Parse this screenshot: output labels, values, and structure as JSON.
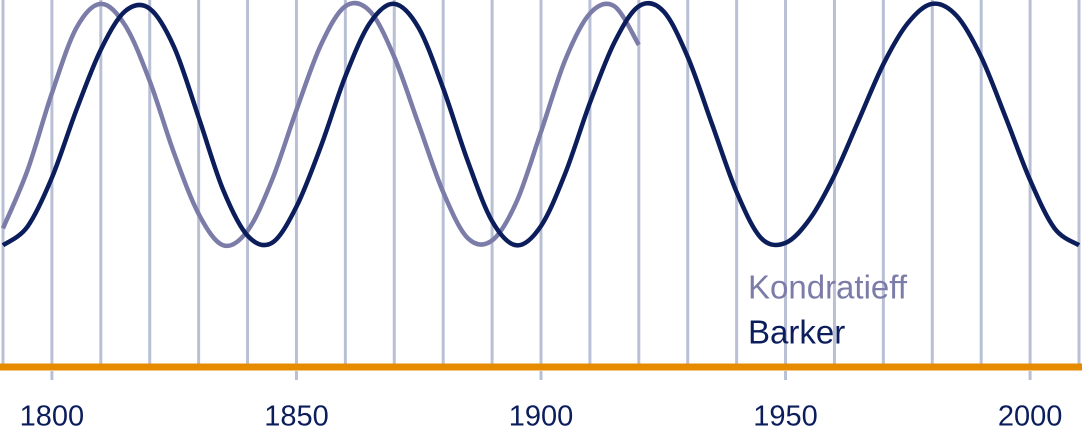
{
  "chart_data": {
    "type": "line",
    "x": [
      1790,
      1795,
      1800,
      1805,
      1810,
      1815,
      1820,
      1825,
      1830,
      1835,
      1840,
      1845,
      1850,
      1855,
      1860,
      1865,
      1870,
      1875,
      1880,
      1885,
      1890,
      1895,
      1900,
      1905,
      1910,
      1915,
      1920,
      1925,
      1930,
      1935,
      1940,
      1945,
      1950,
      1955,
      1960,
      1965,
      1970,
      1975,
      1980,
      1985,
      1990,
      1995,
      2000,
      2005,
      2010
    ],
    "series": [
      {
        "name": "Kondratieff",
        "color": "#7b7ca8",
        "values": [
          0.07,
          0.31,
          0.63,
          0.9,
          1,
          0.91,
          0.68,
          0.38,
          0.13,
          0,
          0.06,
          0.27,
          0.56,
          0.83,
          0.99,
          0.97,
          0.78,
          0.5,
          0.22,
          0.03,
          0.02,
          0.18,
          0.47,
          0.77,
          0.96,
          0.99,
          0.83,
          null,
          null,
          null,
          null,
          null,
          null,
          null,
          null,
          null,
          null,
          null,
          null,
          null,
          null,
          null,
          null,
          null,
          null
        ]
      },
      {
        "name": "Barker",
        "color": "#0c1d5c",
        "values": [
          0,
          0.077,
          0.28,
          0.56,
          0.81,
          0.97,
          0.98,
          0.82,
          0.53,
          0.23,
          0.04,
          0.01,
          0.16,
          0.41,
          0.7,
          0.92,
          1,
          0.9,
          0.65,
          0.35,
          0.1,
          0,
          0.08,
          0.3,
          0.59,
          0.84,
          0.99,
          0.97,
          0.78,
          0.5,
          0.22,
          0.03,
          0.01,
          0.11,
          0.29,
          0.52,
          0.75,
          0.92,
          1,
          0.95,
          0.78,
          0.53,
          0.27,
          0.07,
          0
        ]
      }
    ],
    "xlim": [
      1790,
      2010
    ],
    "ylim": [
      -0.5,
      1.02
    ],
    "xticks": [
      1800,
      1850,
      1900,
      1950,
      2000
    ],
    "xgrid": [
      1790,
      1800,
      1810,
      1820,
      1830,
      1840,
      1850,
      1860,
      1870,
      1880,
      1890,
      1900,
      1910,
      1920,
      1930,
      1940,
      1950,
      1960,
      1970,
      1980,
      1990,
      2000,
      2010
    ],
    "baseline_color": "#e68a00",
    "grid_color": "#b9c0d5"
  }
}
